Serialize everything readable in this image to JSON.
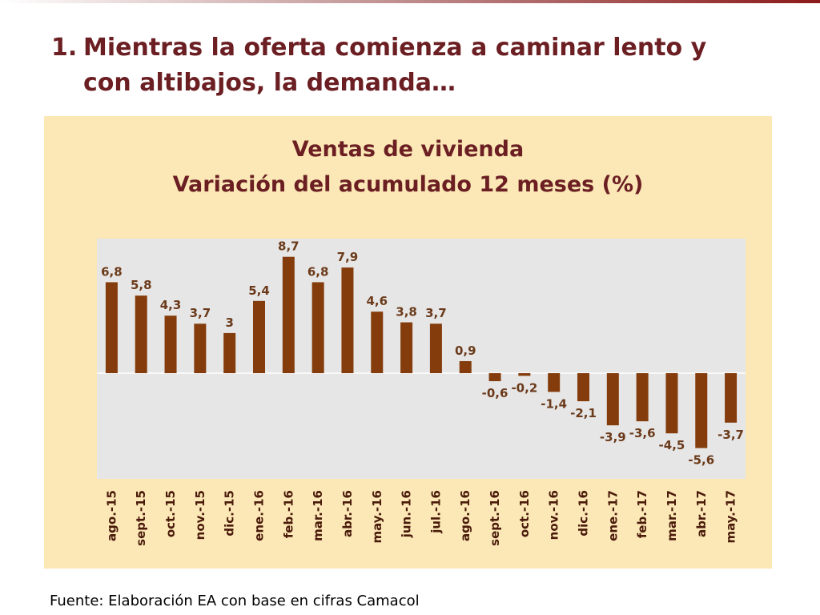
{
  "slide": {
    "heading_number": "1.",
    "heading_line1": "Mientras la oferta comienza a caminar lento y",
    "heading_line2": "con altibajos, la demanda…",
    "source": "Fuente: Elaboración EA con base en cifras Camacol"
  },
  "chart_data": {
    "type": "bar",
    "title_line1": "Ventas de vivienda",
    "title_line2": "Variación del acumulado 12 meses (%)",
    "categories": [
      "ago.-15",
      "sept.-15",
      "oct.-15",
      "nov.-15",
      "dic.-15",
      "ene.-16",
      "feb.-16",
      "mar.-16",
      "abr.-16",
      "may.-16",
      "jun.-16",
      "jul.-16",
      "ago.-16",
      "sept.-16",
      "oct.-16",
      "nov.-16",
      "dic.-16",
      "ene.-17",
      "feb.-17",
      "mar.-17",
      "abr.-17",
      "may.-17"
    ],
    "values": [
      6.8,
      5.8,
      4.3,
      3.7,
      3,
      5.4,
      8.7,
      6.8,
      7.9,
      4.6,
      3.8,
      3.7,
      0.9,
      -0.6,
      -0.2,
      -1.4,
      -2.1,
      -3.9,
      -3.6,
      -4.5,
      -5.6,
      -3.7
    ],
    "labels": [
      "6,8",
      "5,8",
      "4,3",
      "3,7",
      "3",
      "5,4",
      "8,7",
      "6,8",
      "7,9",
      "4,6",
      "3,8",
      "3,7",
      "0,9",
      "-0,6",
      "-0,2",
      "-1,4",
      "-2,1",
      "-3,9",
      "-3,6",
      "-4,5",
      "-5,6",
      "-3,7"
    ],
    "bar_color": "#843c0c",
    "plot_background": "#e6e6e6",
    "panel_background": "#fbe8b6",
    "title_color": "#6b1f23",
    "grid": false,
    "legend": "none"
  }
}
